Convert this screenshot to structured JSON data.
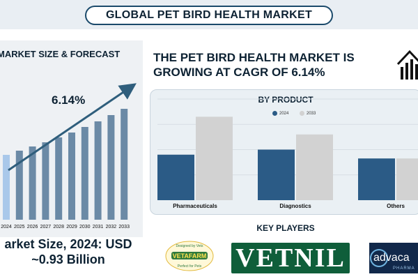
{
  "page": {
    "title": "GLOBAL PET BIRD HEALTH MARKET"
  },
  "left_panel": {
    "title": "MARKET SIZE & FORECAST",
    "cagr_label": "6.14%",
    "market_size_line1": "arket Size, 2024: USD",
    "market_size_line2": "~0.93 Billion"
  },
  "right_panel": {
    "growth_line1": "THE PET BIRD HEALTH MARKET IS",
    "growth_line2": "GROWING AT CAGR OF 6.14%",
    "icon": "growth-house-icon",
    "product_title": "BY PRODUCT",
    "players_title": "KEY PLAYERS",
    "players": [
      {
        "name": "Vetafarm",
        "text": "VETAFARM",
        "tagline_top": "Designed by Vets",
        "tagline_bottom": "Perfect for Pets"
      },
      {
        "name": "Vetnil",
        "text": "VETNIL"
      },
      {
        "name": "Advacare",
        "text": "advaca",
        "sub": "PHARMA"
      }
    ]
  },
  "colors": {
    "navy": "#0d2233",
    "forecast_bar": "#6b8aa6",
    "forecast_bar_first": "#a9c8ea",
    "series_2024": "#2b5b86",
    "series_2033": "#d2d2d2",
    "vetnil_green": "#0f5e3a"
  },
  "chart_data": [
    {
      "type": "bar",
      "title": "MARKET SIZE & FORECAST",
      "categories": [
        "2024",
        "2025",
        "2026",
        "2027",
        "2028",
        "2029",
        "2030",
        "2031",
        "2032",
        "2033"
      ],
      "values": [
        0.93,
        0.99,
        1.05,
        1.11,
        1.18,
        1.25,
        1.33,
        1.41,
        1.5,
        1.59
      ],
      "annotation": "6.14%",
      "ylim": [
        0,
        1.7
      ],
      "grid": false
    },
    {
      "type": "bar",
      "title": "BY PRODUCT",
      "categories": [
        "Pharmaceuticals",
        "Diagnostics",
        "Others"
      ],
      "series": [
        {
          "name": "2024",
          "values": [
            0.36,
            0.4,
            0.33
          ]
        },
        {
          "name": "2033",
          "values": [
            0.66,
            0.52,
            0.33
          ]
        }
      ],
      "ylim": [
        0,
        0.8
      ],
      "grid": true,
      "legend": "top-center"
    }
  ]
}
